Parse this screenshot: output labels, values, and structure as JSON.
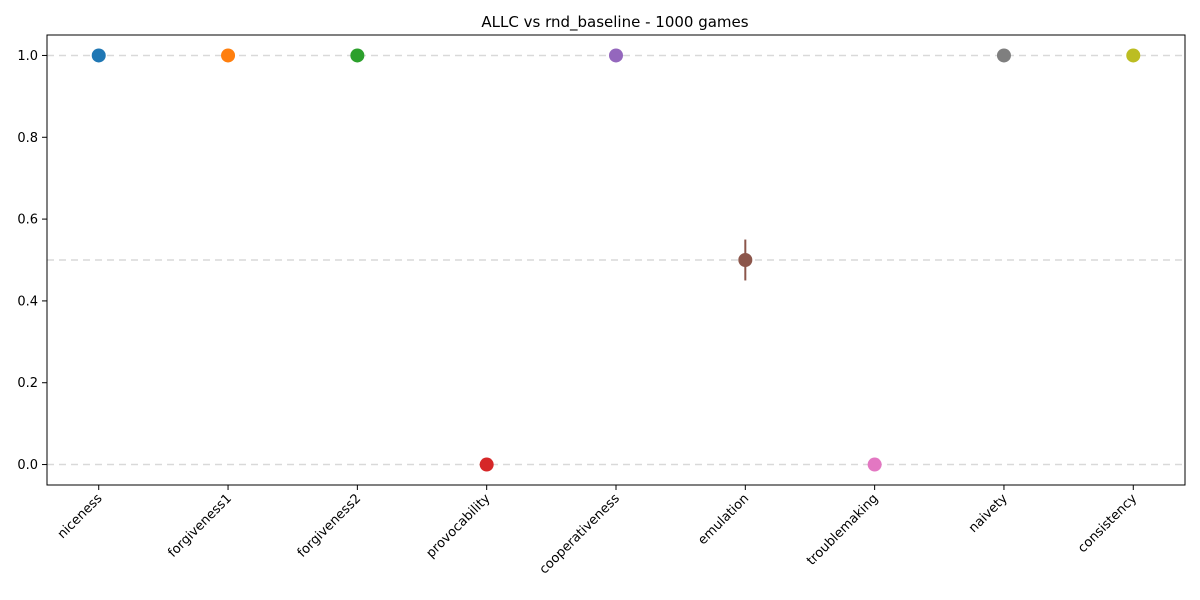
{
  "chart_data": {
    "type": "scatter",
    "title": "ALLC vs rnd_baseline - 1000 games",
    "xlabel": "",
    "ylabel": "",
    "categories": [
      "niceness",
      "forgiveness1",
      "forgiveness2",
      "provocability",
      "cooperativeness",
      "emulation",
      "troublemaking",
      "naivety",
      "consistency"
    ],
    "values": [
      1.0,
      1.0,
      1.0,
      0.0,
      1.0,
      0.5,
      0.0,
      1.0,
      1.0
    ],
    "error": [
      0,
      0,
      0,
      0,
      0,
      0.05,
      0,
      0,
      0
    ],
    "colors": [
      "#1f77b4",
      "#ff7f0e",
      "#2ca02c",
      "#d62728",
      "#9467bd",
      "#8c564b",
      "#e377c2",
      "#7f7f7f",
      "#bcbd22"
    ],
    "ylim": [
      -0.05,
      1.05
    ],
    "yticks": [
      "0.0",
      "0.2",
      "0.4",
      "0.6",
      "0.8",
      "1.0"
    ],
    "reference_lines": [
      0.0,
      0.5,
      1.0
    ],
    "grid": false,
    "legend": "none"
  }
}
